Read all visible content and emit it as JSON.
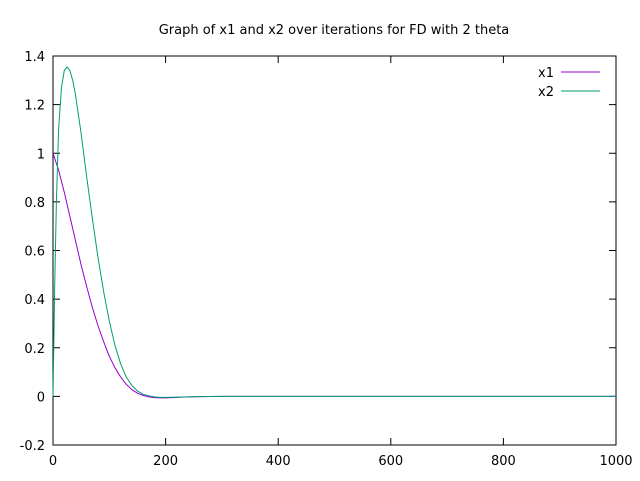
{
  "chart_data": {
    "type": "line",
    "title": "Graph of x1 and x2 over iterations for FD with 2 theta",
    "xlabel": "",
    "ylabel": "",
    "xlim": [
      0,
      1000
    ],
    "ylim": [
      -0.2,
      1.4
    ],
    "x_ticks": [
      "0",
      "200",
      "400",
      "600",
      "800",
      "1000"
    ],
    "y_ticks": [
      "-0.2",
      "0",
      "0.2",
      "0.4",
      "0.6",
      "0.8",
      "1",
      "1.2",
      "1.4"
    ],
    "grid": false,
    "legend_position": "top-right",
    "series": [
      {
        "name": "x1",
        "color": "#9400d3",
        "x": [
          0,
          10,
          20,
          30,
          40,
          50,
          60,
          70,
          80,
          90,
          100,
          110,
          120,
          130,
          140,
          150,
          160,
          170,
          180,
          190,
          200,
          220,
          240,
          260,
          300,
          400,
          600,
          800,
          1000
        ],
        "y": [
          1.0,
          0.93,
          0.84,
          0.74,
          0.64,
          0.54,
          0.45,
          0.365,
          0.29,
          0.225,
          0.165,
          0.118,
          0.08,
          0.05,
          0.028,
          0.013,
          0.004,
          -0.002,
          -0.005,
          -0.006,
          -0.006,
          -0.004,
          -0.002,
          -0.001,
          0.0,
          0.0,
          0.0,
          0.0,
          0.0
        ]
      },
      {
        "name": "x2",
        "color": "#009e73",
        "x": [
          0,
          3,
          6,
          10,
          15,
          20,
          25,
          30,
          35,
          40,
          50,
          60,
          70,
          80,
          90,
          100,
          110,
          120,
          130,
          140,
          150,
          160,
          170,
          180,
          190,
          200,
          220,
          240,
          260,
          300,
          400,
          600,
          800,
          1000
        ],
        "y": [
          0.0,
          0.45,
          0.8,
          1.1,
          1.27,
          1.34,
          1.355,
          1.34,
          1.3,
          1.24,
          1.08,
          0.9,
          0.73,
          0.57,
          0.43,
          0.31,
          0.21,
          0.135,
          0.08,
          0.045,
          0.022,
          0.009,
          0.002,
          -0.002,
          -0.004,
          -0.004,
          -0.003,
          -0.002,
          -0.001,
          0.0,
          0.0,
          0.0,
          0.0,
          0.0
        ]
      }
    ]
  }
}
